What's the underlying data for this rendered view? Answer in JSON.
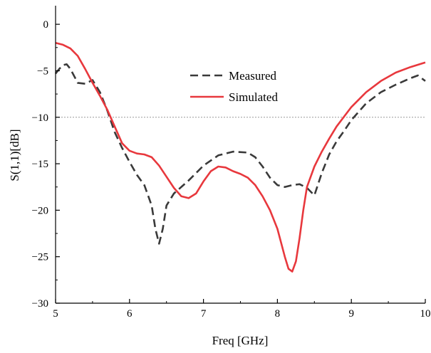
{
  "chart_data": {
    "type": "line",
    "title": "",
    "xlabel": "Freq [GHz]",
    "ylabel": "S(1,1)[dB]",
    "xlim": [
      5,
      10
    ],
    "ylim": [
      -30,
      2
    ],
    "xticks": [
      5,
      6,
      7,
      8,
      9,
      10
    ],
    "yticks": [
      0,
      -5,
      -10,
      -15,
      -20,
      -25,
      -30
    ],
    "grid": false,
    "legend_position": "top-center",
    "reference_line": {
      "y": -10,
      "style": "dotted",
      "color": "#999999"
    },
    "series": [
      {
        "name": "Measured",
        "color": "#3a3a3a",
        "style": "dashed",
        "x": [
          5.0,
          5.05,
          5.1,
          5.15,
          5.2,
          5.3,
          5.4,
          5.5,
          5.6,
          5.7,
          5.8,
          5.9,
          6.0,
          6.1,
          6.2,
          6.3,
          6.35,
          6.4,
          6.45,
          6.5,
          6.6,
          6.8,
          7.0,
          7.2,
          7.4,
          7.6,
          7.7,
          7.8,
          7.9,
          8.0,
          8.1,
          8.2,
          8.3,
          8.4,
          8.5,
          8.6,
          8.7,
          8.8,
          8.9,
          9.0,
          9.2,
          9.4,
          9.6,
          9.8,
          9.9,
          10.0
        ],
        "values": [
          -5.3,
          -4.8,
          -4.4,
          -4.3,
          -4.8,
          -6.3,
          -6.4,
          -6.0,
          -7.3,
          -9.3,
          -11.6,
          -13.3,
          -14.8,
          -16.2,
          -17.3,
          -19.5,
          -22.0,
          -23.6,
          -22.0,
          -19.5,
          -18.2,
          -16.8,
          -15.2,
          -14.1,
          -13.7,
          -13.8,
          -14.3,
          -15.3,
          -16.5,
          -17.3,
          -17.5,
          -17.3,
          -17.2,
          -17.6,
          -18.4,
          -16.0,
          -14.0,
          -12.6,
          -11.5,
          -10.3,
          -8.5,
          -7.3,
          -6.5,
          -5.8,
          -5.5,
          -6.1
        ]
      },
      {
        "name": "Simulated",
        "color": "#e8383d",
        "style": "solid",
        "x": [
          5.0,
          5.1,
          5.2,
          5.3,
          5.4,
          5.5,
          5.6,
          5.7,
          5.8,
          5.9,
          6.0,
          6.1,
          6.2,
          6.3,
          6.4,
          6.5,
          6.6,
          6.7,
          6.8,
          6.9,
          7.0,
          7.1,
          7.2,
          7.3,
          7.4,
          7.5,
          7.6,
          7.7,
          7.8,
          7.9,
          8.0,
          8.05,
          8.1,
          8.15,
          8.2,
          8.25,
          8.3,
          8.35,
          8.4,
          8.5,
          8.6,
          8.7,
          8.8,
          9.0,
          9.2,
          9.4,
          9.6,
          9.8,
          10.0
        ],
        "values": [
          -2.0,
          -2.2,
          -2.6,
          -3.4,
          -4.8,
          -6.3,
          -7.7,
          -9.2,
          -11.0,
          -12.8,
          -13.6,
          -13.9,
          -14.0,
          -14.3,
          -15.2,
          -16.4,
          -17.6,
          -18.5,
          -18.7,
          -18.2,
          -16.9,
          -15.8,
          -15.3,
          -15.4,
          -15.8,
          -16.1,
          -16.5,
          -17.3,
          -18.5,
          -20.0,
          -22.0,
          -23.5,
          -25.0,
          -26.3,
          -26.6,
          -25.5,
          -23.0,
          -20.0,
          -17.5,
          -15.3,
          -13.7,
          -12.3,
          -11.0,
          -8.9,
          -7.3,
          -6.1,
          -5.2,
          -4.6,
          -4.1
        ]
      }
    ]
  }
}
